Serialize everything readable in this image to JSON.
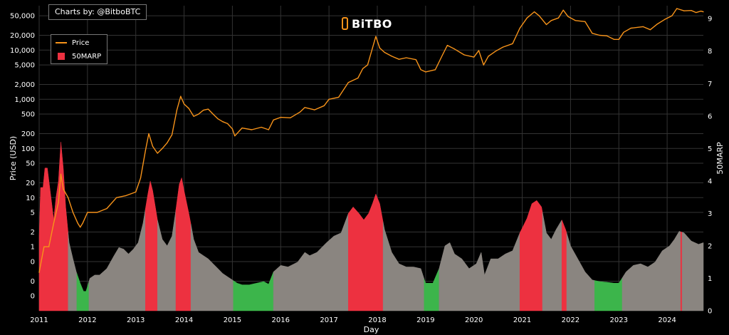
{
  "credit": "Charts by: @BitboBTC",
  "brand": "BiTBO",
  "colors": {
    "price": "#f7931a",
    "high": "#ed3140",
    "mid": "#8a8580",
    "low": "#3cb54b",
    "grid": "#333333"
  },
  "chart_data": {
    "type": "line",
    "xlabel": "Day",
    "ylabel": "Price (USD)",
    "y2label": "50MARP",
    "x_ticks": [
      "2011",
      "2012",
      "2013",
      "2014",
      "2015",
      "2016",
      "2017",
      "2018",
      "2019",
      "2020",
      "2021",
      "2022",
      "2023",
      "2024"
    ],
    "y_ticks": [
      0.1,
      0.2,
      0.5,
      1,
      2,
      5,
      10,
      20,
      50,
      100,
      200,
      500,
      1000,
      2000,
      5000,
      10000,
      20000,
      50000
    ],
    "y_tick_labels": [
      "0",
      "0",
      "0",
      "1",
      "2",
      "5",
      "10",
      "20",
      "50",
      "100",
      "200",
      "500",
      "1,000",
      "2,000",
      "5,000",
      "10,000",
      "20,000",
      "50,000"
    ],
    "y2_ticks": [
      0,
      1,
      2,
      3,
      4,
      5,
      6,
      7,
      8,
      9
    ],
    "ylim": [
      0.05,
      80000
    ],
    "y2lim": [
      0,
      9.4
    ],
    "xlim": [
      2011.0,
      2024.75
    ],
    "grid": true,
    "legend": "top-left",
    "series": [
      {
        "name": "Price",
        "axis": "left",
        "points": [
          [
            2011.0,
            0.3
          ],
          [
            2011.1,
            1
          ],
          [
            2011.2,
            1
          ],
          [
            2011.3,
            3
          ],
          [
            2011.4,
            8
          ],
          [
            2011.45,
            30
          ],
          [
            2011.5,
            15
          ],
          [
            2011.6,
            10
          ],
          [
            2011.7,
            5
          ],
          [
            2011.8,
            3
          ],
          [
            2011.85,
            2.5
          ],
          [
            2011.9,
            3
          ],
          [
            2012.0,
            5
          ],
          [
            2012.2,
            5
          ],
          [
            2012.4,
            6
          ],
          [
            2012.6,
            10
          ],
          [
            2012.8,
            11
          ],
          [
            2013.0,
            13
          ],
          [
            2013.1,
            25
          ],
          [
            2013.2,
            90
          ],
          [
            2013.27,
            200
          ],
          [
            2013.35,
            110
          ],
          [
            2013.45,
            80
          ],
          [
            2013.55,
            100
          ],
          [
            2013.65,
            130
          ],
          [
            2013.75,
            190
          ],
          [
            2013.85,
            600
          ],
          [
            2013.93,
            1150
          ],
          [
            2014.0,
            800
          ],
          [
            2014.1,
            650
          ],
          [
            2014.2,
            450
          ],
          [
            2014.3,
            500
          ],
          [
            2014.4,
            600
          ],
          [
            2014.5,
            630
          ],
          [
            2014.6,
            500
          ],
          [
            2014.7,
            400
          ],
          [
            2014.8,
            350
          ],
          [
            2014.9,
            320
          ],
          [
            2015.0,
            250
          ],
          [
            2015.05,
            180
          ],
          [
            2015.2,
            260
          ],
          [
            2015.4,
            240
          ],
          [
            2015.6,
            270
          ],
          [
            2015.75,
            240
          ],
          [
            2015.85,
            380
          ],
          [
            2016.0,
            430
          ],
          [
            2016.2,
            420
          ],
          [
            2016.4,
            550
          ],
          [
            2016.5,
            680
          ],
          [
            2016.7,
            610
          ],
          [
            2016.9,
            740
          ],
          [
            2017.0,
            1000
          ],
          [
            2017.2,
            1100
          ],
          [
            2017.4,
            2200
          ],
          [
            2017.6,
            2700
          ],
          [
            2017.7,
            4200
          ],
          [
            2017.8,
            5000
          ],
          [
            2017.9,
            11000
          ],
          [
            2017.97,
            19000
          ],
          [
            2018.05,
            11000
          ],
          [
            2018.15,
            9000
          ],
          [
            2018.3,
            7500
          ],
          [
            2018.45,
            6500
          ],
          [
            2018.6,
            7000
          ],
          [
            2018.8,
            6400
          ],
          [
            2018.9,
            4000
          ],
          [
            2019.0,
            3600
          ],
          [
            2019.2,
            4000
          ],
          [
            2019.35,
            8000
          ],
          [
            2019.45,
            12500
          ],
          [
            2019.6,
            10500
          ],
          [
            2019.8,
            8000
          ],
          [
            2020.0,
            7200
          ],
          [
            2020.1,
            9800
          ],
          [
            2020.2,
            5000
          ],
          [
            2020.3,
            7500
          ],
          [
            2020.45,
            9500
          ],
          [
            2020.6,
            11500
          ],
          [
            2020.8,
            13500
          ],
          [
            2020.95,
            28000
          ],
          [
            2021.1,
            45000
          ],
          [
            2021.25,
            60000
          ],
          [
            2021.35,
            50000
          ],
          [
            2021.5,
            33000
          ],
          [
            2021.6,
            40000
          ],
          [
            2021.75,
            45000
          ],
          [
            2021.85,
            65000
          ],
          [
            2021.95,
            48000
          ],
          [
            2022.1,
            40000
          ],
          [
            2022.3,
            38000
          ],
          [
            2022.45,
            22000
          ],
          [
            2022.6,
            20000
          ],
          [
            2022.75,
            19500
          ],
          [
            2022.9,
            16500
          ],
          [
            2023.0,
            16500
          ],
          [
            2023.1,
            23000
          ],
          [
            2023.25,
            28000
          ],
          [
            2023.5,
            30000
          ],
          [
            2023.65,
            26000
          ],
          [
            2023.8,
            34000
          ],
          [
            2023.95,
            42000
          ],
          [
            2024.1,
            50000
          ],
          [
            2024.2,
            70000
          ],
          [
            2024.35,
            63000
          ],
          [
            2024.5,
            64000
          ],
          [
            2024.6,
            58000
          ],
          [
            2024.7,
            62000
          ],
          [
            2024.75,
            60000
          ]
        ]
      },
      {
        "name": "50MARP",
        "axis": "right",
        "points": [
          [
            2011.0,
            2.3
          ],
          [
            2011.03,
            3.8
          ],
          [
            2011.08,
            3.8
          ],
          [
            2011.12,
            4.4
          ],
          [
            2011.17,
            4.4
          ],
          [
            2011.22,
            3.8
          ],
          [
            2011.27,
            3.2
          ],
          [
            2011.3,
            2.8
          ],
          [
            2011.35,
            3.5
          ],
          [
            2011.4,
            4.0
          ],
          [
            2011.45,
            5.2
          ],
          [
            2011.5,
            4.4
          ],
          [
            2011.55,
            3.2
          ],
          [
            2011.62,
            2.1
          ],
          [
            2011.7,
            1.6
          ],
          [
            2011.77,
            1.2
          ],
          [
            2011.85,
            0.85
          ],
          [
            2011.92,
            0.6
          ],
          [
            2011.97,
            0.6
          ],
          [
            2012.05,
            1.0
          ],
          [
            2012.15,
            1.1
          ],
          [
            2012.25,
            1.1
          ],
          [
            2012.4,
            1.3
          ],
          [
            2012.55,
            1.7
          ],
          [
            2012.65,
            1.95
          ],
          [
            2012.75,
            1.9
          ],
          [
            2012.85,
            1.75
          ],
          [
            2012.95,
            1.9
          ],
          [
            2013.05,
            2.1
          ],
          [
            2013.15,
            2.7
          ],
          [
            2013.25,
            3.6
          ],
          [
            2013.3,
            4.0
          ],
          [
            2013.35,
            3.7
          ],
          [
            2013.45,
            2.8
          ],
          [
            2013.55,
            2.2
          ],
          [
            2013.65,
            2.0
          ],
          [
            2013.75,
            2.3
          ],
          [
            2013.82,
            3.0
          ],
          [
            2013.9,
            3.9
          ],
          [
            2013.95,
            4.1
          ],
          [
            2014.0,
            3.7
          ],
          [
            2014.1,
            3.0
          ],
          [
            2014.2,
            2.2
          ],
          [
            2014.3,
            1.8
          ],
          [
            2014.4,
            1.7
          ],
          [
            2014.5,
            1.6
          ],
          [
            2014.6,
            1.45
          ],
          [
            2014.7,
            1.3
          ],
          [
            2014.8,
            1.15
          ],
          [
            2014.9,
            1.05
          ],
          [
            2015.0,
            0.95
          ],
          [
            2015.1,
            0.85
          ],
          [
            2015.2,
            0.8
          ],
          [
            2015.35,
            0.8
          ],
          [
            2015.5,
            0.85
          ],
          [
            2015.65,
            0.9
          ],
          [
            2015.75,
            0.82
          ],
          [
            2015.85,
            1.2
          ],
          [
            2016.0,
            1.4
          ],
          [
            2016.15,
            1.35
          ],
          [
            2016.35,
            1.5
          ],
          [
            2016.5,
            1.8
          ],
          [
            2016.6,
            1.7
          ],
          [
            2016.75,
            1.8
          ],
          [
            2016.95,
            2.1
          ],
          [
            2017.1,
            2.3
          ],
          [
            2017.25,
            2.4
          ],
          [
            2017.4,
            3.0
          ],
          [
            2017.5,
            3.2
          ],
          [
            2017.62,
            3.0
          ],
          [
            2017.72,
            2.8
          ],
          [
            2017.82,
            3.0
          ],
          [
            2017.9,
            3.3
          ],
          [
            2017.97,
            3.6
          ],
          [
            2018.05,
            3.3
          ],
          [
            2018.15,
            2.5
          ],
          [
            2018.3,
            1.8
          ],
          [
            2018.45,
            1.45
          ],
          [
            2018.6,
            1.35
          ],
          [
            2018.75,
            1.35
          ],
          [
            2018.9,
            1.3
          ],
          [
            2019.0,
            0.85
          ],
          [
            2019.15,
            0.85
          ],
          [
            2019.28,
            1.3
          ],
          [
            2019.4,
            2.0
          ],
          [
            2019.5,
            2.1
          ],
          [
            2019.6,
            1.75
          ],
          [
            2019.75,
            1.6
          ],
          [
            2019.9,
            1.3
          ],
          [
            2020.05,
            1.45
          ],
          [
            2020.15,
            1.8
          ],
          [
            2020.22,
            1.1
          ],
          [
            2020.35,
            1.6
          ],
          [
            2020.5,
            1.6
          ],
          [
            2020.65,
            1.75
          ],
          [
            2020.8,
            1.85
          ],
          [
            2020.95,
            2.4
          ],
          [
            2021.1,
            2.85
          ],
          [
            2021.2,
            3.3
          ],
          [
            2021.3,
            3.4
          ],
          [
            2021.4,
            3.2
          ],
          [
            2021.5,
            2.4
          ],
          [
            2021.6,
            2.2
          ],
          [
            2021.7,
            2.5
          ],
          [
            2021.82,
            2.8
          ],
          [
            2021.9,
            2.5
          ],
          [
            2022.0,
            2.0
          ],
          [
            2022.15,
            1.6
          ],
          [
            2022.3,
            1.2
          ],
          [
            2022.45,
            0.95
          ],
          [
            2022.6,
            0.9
          ],
          [
            2022.75,
            0.88
          ],
          [
            2022.9,
            0.85
          ],
          [
            2023.0,
            0.85
          ],
          [
            2023.15,
            1.2
          ],
          [
            2023.3,
            1.4
          ],
          [
            2023.45,
            1.45
          ],
          [
            2023.6,
            1.35
          ],
          [
            2023.75,
            1.5
          ],
          [
            2023.9,
            1.85
          ],
          [
            2024.05,
            2.0
          ],
          [
            2024.15,
            2.2
          ],
          [
            2024.25,
            2.45
          ],
          [
            2024.35,
            2.4
          ],
          [
            2024.5,
            2.15
          ],
          [
            2024.65,
            2.05
          ],
          [
            2024.75,
            2.1
          ]
        ],
        "color_bands": [
          {
            "range": [
              2011.0,
              2011.6
            ],
            "level": "high"
          },
          {
            "range": [
              2011.6,
              2011.78
            ],
            "level": "mid"
          },
          {
            "range": [
              2011.78,
              2012.03
            ],
            "level": "low"
          },
          {
            "range": [
              2012.03,
              2013.2
            ],
            "level": "mid"
          },
          {
            "range": [
              2013.2,
              2013.45
            ],
            "level": "high"
          },
          {
            "range": [
              2013.45,
              2013.83
            ],
            "level": "mid"
          },
          {
            "range": [
              2013.83,
              2014.14
            ],
            "level": "high"
          },
          {
            "range": [
              2014.14,
              2015.02
            ],
            "level": "mid"
          },
          {
            "range": [
              2015.02,
              2015.85
            ],
            "level": "low"
          },
          {
            "range": [
              2015.85,
              2017.4
            ],
            "level": "mid"
          },
          {
            "range": [
              2017.4,
              2018.12
            ],
            "level": "high"
          },
          {
            "range": [
              2018.12,
              2018.97
            ],
            "level": "mid"
          },
          {
            "range": [
              2018.97,
              2019.28
            ],
            "level": "low"
          },
          {
            "range": [
              2019.28,
              2020.95
            ],
            "level": "mid"
          },
          {
            "range": [
              2020.95,
              2021.42
            ],
            "level": "high"
          },
          {
            "range": [
              2021.42,
              2021.82
            ],
            "level": "mid"
          },
          {
            "range": [
              2021.82,
              2021.92
            ],
            "level": "high"
          },
          {
            "range": [
              2021.92,
              2022.5
            ],
            "level": "mid"
          },
          {
            "range": [
              2022.5,
              2023.07
            ],
            "level": "low"
          },
          {
            "range": [
              2023.07,
              2024.28
            ],
            "level": "mid"
          },
          {
            "range": [
              2024.28,
              2024.31
            ],
            "level": "high"
          },
          {
            "range": [
              2024.31,
              2024.75
            ],
            "level": "mid"
          }
        ]
      }
    ]
  }
}
